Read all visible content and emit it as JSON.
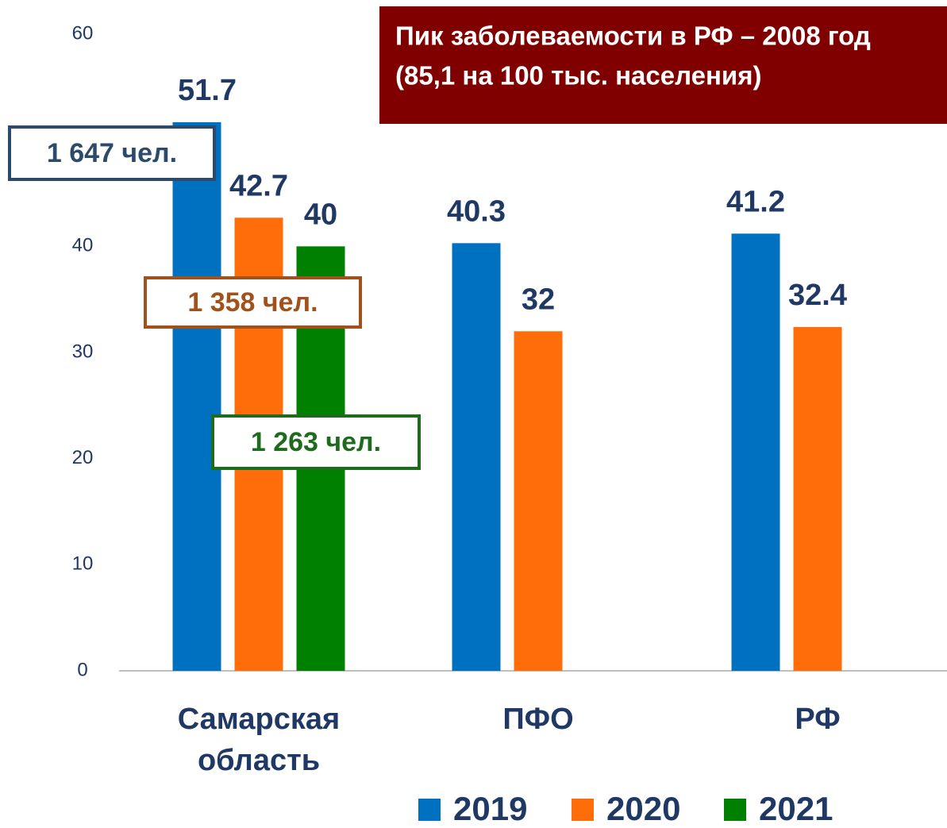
{
  "chart_data": {
    "type": "bar",
    "categories": [
      "Самарская область",
      "ПФО",
      "РФ"
    ],
    "series": [
      {
        "name": "2019",
        "color": "#0070c0",
        "values": [
          51.7,
          40.3,
          41.2
        ]
      },
      {
        "name": "2020",
        "color": "#ff6d0a",
        "values": [
          42.7,
          32,
          32.4
        ]
      },
      {
        "name": "2021",
        "color": "#008000",
        "values": [
          40,
          null,
          null
        ]
      }
    ],
    "ylim": [
      0,
      60
    ],
    "yticks": [
      0,
      10,
      20,
      30,
      40,
      60
    ],
    "notes": [
      "Пик заболеваемости в РФ – 2008 год",
      "(85,1 на 100 тыс. населения)"
    ],
    "boxes": [
      {
        "text": "1 647 чел.",
        "color": "#2e4a6b"
      },
      {
        "text": "1 358 чел.",
        "color": "#a0521d"
      },
      {
        "text": "1 263 чел.",
        "color": "#1e6b1e"
      }
    ]
  }
}
